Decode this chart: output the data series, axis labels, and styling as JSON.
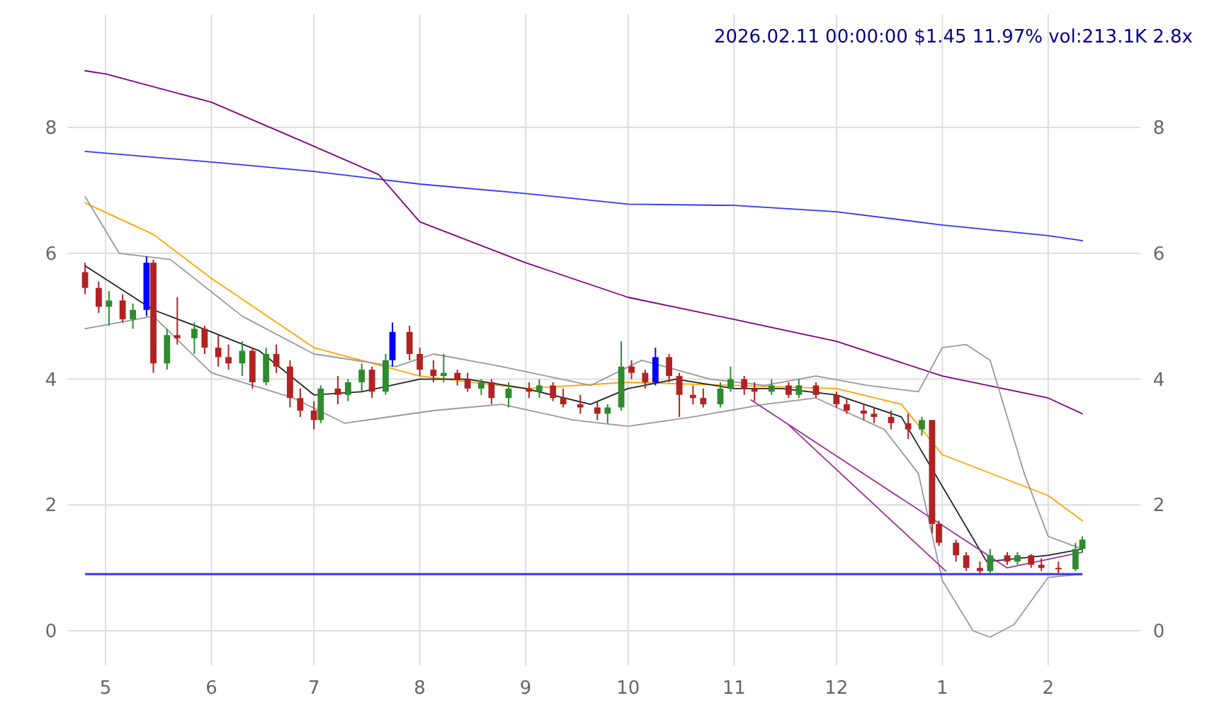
{
  "chart_data": {
    "type": "candlestick",
    "title": "2026.02.11 00:00:00 $1.45 11.97% vol:213.1K 2.8x",
    "x": [
      "2025-04-25",
      "2025-04-29",
      "2025-05-02",
      "2025-05-06",
      "2025-05-09",
      "2025-05-13",
      "2025-05-15",
      "2025-05-19",
      "2025-05-22",
      "2025-05-27",
      "2025-05-30",
      "2025-06-03",
      "2025-06-06",
      "2025-06-10",
      "2025-06-13",
      "2025-06-17",
      "2025-06-20",
      "2025-06-24",
      "2025-06-27",
      "2025-07-01",
      "2025-07-03",
      "2025-07-08",
      "2025-07-11",
      "2025-07-15",
      "2025-07-18",
      "2025-07-22",
      "2025-07-24",
      "2025-07-29",
      "2025-08-01",
      "2025-08-05",
      "2025-08-08",
      "2025-08-12",
      "2025-08-15",
      "2025-08-19",
      "2025-08-22",
      "2025-08-27",
      "2025-09-02",
      "2025-09-05",
      "2025-09-09",
      "2025-09-12",
      "2025-09-17",
      "2025-09-22",
      "2025-09-25",
      "2025-09-29",
      "2025-10-02",
      "2025-10-06",
      "2025-10-09",
      "2025-10-13",
      "2025-10-16",
      "2025-10-20",
      "2025-10-23",
      "2025-10-28",
      "2025-10-31",
      "2025-11-04",
      "2025-11-07",
      "2025-11-12",
      "2025-11-17",
      "2025-11-20",
      "2025-11-25",
      "2025-12-01",
      "2025-12-04",
      "2025-12-09",
      "2025-12-12",
      "2025-12-17",
      "2025-12-22",
      "2025-12-26",
      "2025-12-29",
      "2025-12-31",
      "2026-01-05",
      "2026-01-08",
      "2026-01-12",
      "2026-01-15",
      "2026-01-20",
      "2026-01-23",
      "2026-01-27",
      "2026-01-30",
      "2026-02-04",
      "2026-02-09",
      "2026-02-11"
    ],
    "ohlc": [
      [
        5.7,
        5.85,
        5.35,
        5.45
      ],
      [
        5.45,
        5.55,
        5.05,
        5.15
      ],
      [
        5.15,
        5.4,
        4.85,
        5.25
      ],
      [
        5.25,
        5.35,
        4.9,
        4.95
      ],
      [
        4.95,
        5.2,
        4.8,
        5.1
      ],
      [
        5.1,
        5.95,
        5.0,
        5.85
      ],
      [
        5.85,
        5.9,
        4.1,
        4.25
      ],
      [
        4.25,
        4.8,
        4.15,
        4.7
      ],
      [
        4.7,
        5.3,
        4.55,
        4.65
      ],
      [
        4.65,
        4.9,
        4.4,
        4.8
      ],
      [
        4.8,
        4.85,
        4.4,
        4.5
      ],
      [
        4.5,
        4.7,
        4.2,
        4.35
      ],
      [
        4.35,
        4.55,
        4.15,
        4.25
      ],
      [
        4.25,
        4.6,
        4.05,
        4.45
      ],
      [
        4.45,
        4.5,
        3.85,
        3.95
      ],
      [
        3.95,
        4.5,
        3.9,
        4.4
      ],
      [
        4.4,
        4.55,
        4.1,
        4.2
      ],
      [
        4.2,
        4.3,
        3.55,
        3.7
      ],
      [
        3.7,
        3.85,
        3.4,
        3.5
      ],
      [
        3.5,
        3.65,
        3.2,
        3.35
      ],
      [
        3.35,
        3.9,
        3.3,
        3.85
      ],
      [
        3.85,
        4.05,
        3.6,
        3.75
      ],
      [
        3.75,
        4.0,
        3.65,
        3.95
      ],
      [
        3.95,
        4.25,
        3.8,
        4.15
      ],
      [
        4.15,
        4.2,
        3.7,
        3.8
      ],
      [
        3.8,
        4.4,
        3.75,
        4.3
      ],
      [
        4.3,
        4.9,
        4.2,
        4.75
      ],
      [
        4.75,
        4.85,
        4.3,
        4.4
      ],
      [
        4.4,
        4.5,
        4.05,
        4.15
      ],
      [
        4.15,
        4.3,
        3.95,
        4.05
      ],
      [
        4.05,
        4.4,
        3.95,
        4.1
      ],
      [
        4.1,
        4.15,
        3.9,
        4.0
      ],
      [
        4.0,
        4.1,
        3.8,
        3.85
      ],
      [
        3.85,
        4.0,
        3.75,
        3.95
      ],
      [
        3.95,
        4.0,
        3.6,
        3.7
      ],
      [
        3.7,
        3.95,
        3.55,
        3.85
      ],
      [
        3.85,
        3.95,
        3.7,
        3.8
      ],
      [
        3.8,
        4.0,
        3.7,
        3.9
      ],
      [
        3.9,
        3.95,
        3.65,
        3.7
      ],
      [
        3.7,
        3.85,
        3.55,
        3.6
      ],
      [
        3.6,
        3.75,
        3.45,
        3.55
      ],
      [
        3.55,
        3.65,
        3.35,
        3.45
      ],
      [
        3.45,
        3.6,
        3.3,
        3.55
      ],
      [
        3.55,
        4.6,
        3.5,
        4.2
      ],
      [
        4.2,
        4.3,
        4.0,
        4.1
      ],
      [
        4.1,
        4.15,
        3.85,
        3.95
      ],
      [
        3.95,
        4.5,
        3.9,
        4.35
      ],
      [
        4.35,
        4.4,
        3.95,
        4.05
      ],
      [
        4.05,
        4.1,
        3.4,
        3.75
      ],
      [
        3.75,
        3.9,
        3.6,
        3.7
      ],
      [
        3.7,
        3.85,
        3.55,
        3.6
      ],
      [
        3.6,
        3.95,
        3.55,
        3.85
      ],
      [
        3.85,
        4.2,
        3.8,
        4.0
      ],
      [
        4.0,
        4.05,
        3.75,
        3.85
      ],
      [
        3.85,
        3.95,
        3.65,
        3.8
      ],
      [
        3.8,
        4.0,
        3.75,
        3.9
      ],
      [
        3.9,
        3.95,
        3.7,
        3.75
      ],
      [
        3.75,
        4.0,
        3.7,
        3.9
      ],
      [
        3.9,
        3.95,
        3.7,
        3.75
      ],
      [
        3.75,
        3.8,
        3.55,
        3.6
      ],
      [
        3.6,
        3.7,
        3.45,
        3.5
      ],
      [
        3.5,
        3.6,
        3.35,
        3.45
      ],
      [
        3.45,
        3.55,
        3.3,
        3.4
      ],
      [
        3.4,
        3.5,
        3.2,
        3.3
      ],
      [
        3.3,
        3.45,
        3.05,
        3.2
      ],
      [
        3.2,
        3.4,
        3.1,
        3.35
      ],
      [
        3.35,
        3.35,
        1.55,
        1.7
      ],
      [
        1.7,
        1.75,
        1.35,
        1.4
      ],
      [
        1.4,
        1.45,
        1.1,
        1.2
      ],
      [
        1.2,
        1.25,
        0.95,
        1.0
      ],
      [
        1.0,
        1.1,
        0.9,
        0.95
      ],
      [
        0.95,
        1.3,
        0.92,
        1.2
      ],
      [
        1.2,
        1.25,
        1.05,
        1.1
      ],
      [
        1.1,
        1.25,
        1.05,
        1.2
      ],
      [
        1.2,
        1.22,
        1.0,
        1.05
      ],
      [
        1.05,
        1.15,
        0.95,
        1.0
      ],
      [
        1.0,
        1.1,
        0.92,
        0.98
      ],
      [
        0.98,
        1.4,
        0.95,
        1.3
      ],
      [
        1.3,
        1.5,
        1.25,
        1.45
      ]
    ],
    "colors": [
      "#b22222",
      "#b22222",
      "#2e8b2e",
      "#b22222",
      "#2e8b2e",
      "#0000ff",
      "#b22222",
      "#2e8b2e",
      "#b22222",
      "#2e8b2e",
      "#b22222",
      "#b22222",
      "#b22222",
      "#2e8b2e",
      "#b22222",
      "#2e8b2e",
      "#b22222",
      "#b22222",
      "#b22222",
      "#b22222",
      "#2e8b2e",
      "#b22222",
      "#2e8b2e",
      "#2e8b2e",
      "#b22222",
      "#2e8b2e",
      "#0000ff",
      "#b22222",
      "#b22222",
      "#b22222",
      "#2e8b2e",
      "#b22222",
      "#b22222",
      "#2e8b2e",
      "#b22222",
      "#2e8b2e",
      "#b22222",
      "#2e8b2e",
      "#b22222",
      "#b22222",
      "#b22222",
      "#b22222",
      "#2e8b2e",
      "#2e8b2e",
      "#b22222",
      "#b22222",
      "#0000ff",
      "#b22222",
      "#b22222",
      "#b22222",
      "#b22222",
      "#2e8b2e",
      "#2e8b2e",
      "#b22222",
      "#b22222",
      "#2e8b2e",
      "#b22222",
      "#2e8b2e",
      "#b22222",
      "#b22222",
      "#b22222",
      "#b22222",
      "#b22222",
      "#b22222",
      "#b22222",
      "#2e8b2e",
      "#b22222",
      "#b22222",
      "#b22222",
      "#b22222",
      "#b22222",
      "#2e8b2e",
      "#b22222",
      "#2e8b2e",
      "#b22222",
      "#b22222",
      "#b22222",
      "#2e8b2e",
      "#2e8b2e"
    ],
    "series": [
      {
        "type": "line",
        "color": "#3333ff",
        "x": [
          "2025-04-25",
          "2025-06-01",
          "2025-07-01",
          "2025-08-01",
          "2025-09-01",
          "2025-10-01",
          "2025-11-01",
          "2025-12-01",
          "2026-01-01",
          "2026-02-01",
          "2026-02-11"
        ],
        "values": [
          7.62,
          7.45,
          7.3,
          7.1,
          6.95,
          6.78,
          6.76,
          6.66,
          6.45,
          6.28,
          6.2
        ]
      },
      {
        "type": "line",
        "color": "#800080",
        "x": [
          "2025-04-25",
          "2025-05-01",
          "2025-06-01",
          "2025-07-01",
          "2025-07-20",
          "2025-08-01",
          "2025-09-01",
          "2025-10-01",
          "2025-11-01",
          "2025-12-01",
          "2026-01-01",
          "2026-02-01",
          "2026-02-11"
        ],
        "values": [
          8.9,
          8.85,
          8.4,
          7.7,
          7.25,
          6.5,
          5.85,
          5.3,
          4.95,
          4.6,
          4.05,
          3.7,
          3.45
        ]
      },
      {
        "type": "line",
        "color": "#ffa500",
        "x": [
          "2025-04-25",
          "2025-05-15",
          "2025-06-01",
          "2025-07-01",
          "2025-08-01",
          "2025-09-01",
          "2025-10-01",
          "2025-11-01",
          "2025-12-01",
          "2025-12-20",
          "2026-01-01",
          "2026-02-01",
          "2026-02-11"
        ],
        "values": [
          6.8,
          6.3,
          5.6,
          4.5,
          4.05,
          3.85,
          3.95,
          3.9,
          3.85,
          3.6,
          2.8,
          2.15,
          1.75
        ]
      },
      {
        "type": "line",
        "color": "#222222",
        "x": [
          "2025-04-25",
          "2025-05-15",
          "2025-06-01",
          "2025-06-15",
          "2025-07-01",
          "2025-07-15",
          "2025-08-01",
          "2025-08-15",
          "2025-09-01",
          "2025-09-20",
          "2025-10-01",
          "2025-10-15",
          "2025-11-01",
          "2025-11-15",
          "2025-12-01",
          "2025-12-20",
          "2026-01-14",
          "2026-02-01",
          "2026-02-11"
        ],
        "values": [
          5.8,
          5.1,
          4.75,
          4.45,
          3.75,
          3.8,
          4.0,
          4.0,
          3.85,
          3.6,
          3.85,
          4.0,
          3.85,
          3.85,
          3.75,
          3.4,
          1.1,
          1.2,
          1.3
        ]
      },
      {
        "type": "line",
        "color": "#999999",
        "x": [
          "2025-04-25",
          "2025-05-05",
          "2025-05-20",
          "2025-06-10",
          "2025-07-01",
          "2025-07-25",
          "2025-08-05",
          "2025-08-25",
          "2025-09-20",
          "2025-10-05",
          "2025-10-25",
          "2025-11-10",
          "2025-11-25",
          "2025-12-10",
          "2025-12-25",
          "2026-01-01",
          "2026-01-08",
          "2026-01-15",
          "2026-01-25",
          "2026-02-01",
          "2026-02-11"
        ],
        "values": [
          6.9,
          6.0,
          5.9,
          5.0,
          4.4,
          4.2,
          4.4,
          4.2,
          3.9,
          4.3,
          4.0,
          3.9,
          4.05,
          3.9,
          3.8,
          4.5,
          4.55,
          4.3,
          2.5,
          1.5,
          1.3
        ]
      },
      {
        "type": "line",
        "color": "#999999",
        "x": [
          "2025-04-25",
          "2025-05-15",
          "2025-06-01",
          "2025-06-25",
          "2025-07-10",
          "2025-08-05",
          "2025-08-25",
          "2025-09-15",
          "2025-10-01",
          "2025-10-20",
          "2025-11-10",
          "2025-11-25",
          "2025-12-15",
          "2025-12-25",
          "2026-01-01",
          "2026-01-10",
          "2026-01-15",
          "2026-01-22",
          "2026-02-01",
          "2026-02-11"
        ],
        "values": [
          4.8,
          5.0,
          4.1,
          3.7,
          3.3,
          3.5,
          3.6,
          3.35,
          3.25,
          3.4,
          3.6,
          3.7,
          3.2,
          2.5,
          0.8,
          0.0,
          -0.1,
          0.1,
          0.85,
          0.9
        ]
      },
      {
        "type": "line",
        "color": "#993399",
        "x": [
          "2025-11-06",
          "2026-01-20",
          "2026-02-11"
        ],
        "values": [
          3.67,
          1.0,
          1.25
        ]
      },
      {
        "type": "line",
        "color": "#993399",
        "x": [
          "2025-11-17",
          "2026-01-02"
        ],
        "values": [
          3.27,
          0.95
        ]
      }
    ],
    "ref_lines": [
      {
        "axis": "y",
        "value": 0.9,
        "label": null,
        "color": "#3333ff"
      }
    ],
    "xlim": [
      "2025-04-20",
      "2026-02-28"
    ],
    "xticks": [
      {
        "value": "2025-05-01",
        "label": "5"
      },
      {
        "value": "2025-06-01",
        "label": "6"
      },
      {
        "value": "2025-07-01",
        "label": "7"
      },
      {
        "value": "2025-08-01",
        "label": "8"
      },
      {
        "value": "2025-09-01",
        "label": "9"
      },
      {
        "value": "2025-10-01",
        "label": "10"
      },
      {
        "value": "2025-11-01",
        "label": "11"
      },
      {
        "value": "2025-12-01",
        "label": "12"
      },
      {
        "value": "2026-01-01",
        "label": "1"
      },
      {
        "value": "2026-02-01",
        "label": "2"
      }
    ],
    "ylim": [
      -0.55,
      9.8
    ],
    "yticks": [
      0,
      2,
      4,
      6,
      8
    ],
    "y2lim": [
      -0.55,
      9.8
    ],
    "y2ticks": [
      0,
      2,
      4,
      6,
      8
    ],
    "grid": true
  }
}
